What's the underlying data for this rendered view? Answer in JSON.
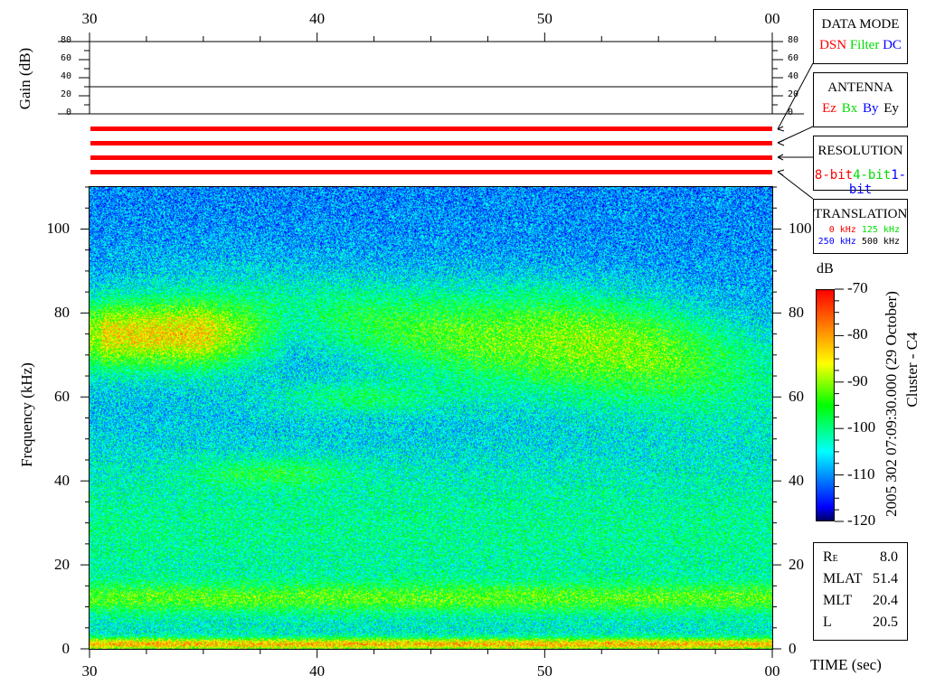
{
  "chart_data": {
    "type": "heatmap",
    "title": "",
    "xlabel": "TIME (sec)",
    "ylabel": "Frequency (kHz)",
    "x_tick_labels": [
      "30",
      "40",
      "50",
      "00"
    ],
    "xlim": [
      30,
      60
    ],
    "ylim": [
      0,
      110
    ],
    "y_tick_labels": [
      "0",
      "20",
      "40",
      "60",
      "80",
      "100"
    ],
    "colorbar": {
      "label": "dB",
      "range": [
        -120,
        -70
      ],
      "tick_labels": [
        "-70",
        "-80",
        "-90",
        "-100",
        "-110",
        "-120"
      ],
      "colormap": [
        "#000060",
        "#0000ff",
        "#00ffff",
        "#00ff80",
        "#00ff00",
        "#ffff00",
        "#ff8000",
        "#ff0000"
      ]
    },
    "gain_panel": {
      "ylabel": "Gain (dB)",
      "ylim": [
        0,
        80
      ],
      "tick_labels": [
        "0",
        "20",
        "40",
        "60",
        "80"
      ],
      "gain_value": 30
    },
    "status_bars": {
      "count": 4,
      "color": "#ff0000"
    }
  },
  "side_title": "2005 302 07:09:30.000 (29 October)",
  "spacecraft": "Cluster - C4",
  "legend_boxes": {
    "data_mode": {
      "title": "DATA MODE",
      "items": [
        {
          "label": "DSN",
          "color": "#ff0000"
        },
        {
          "label": "Filter",
          "color": "#00dd00"
        },
        {
          "label": "DC",
          "color": "#0000ff"
        }
      ]
    },
    "antenna": {
      "title": "ANTENNA",
      "items": [
        {
          "label": "Ez",
          "color": "#ff0000"
        },
        {
          "label": "Bx",
          "color": "#00dd00"
        },
        {
          "label": "By",
          "color": "#0000ff"
        },
        {
          "label": "Ey",
          "color": "#000000"
        }
      ]
    },
    "resolution": {
      "title": "RESOLUTION",
      "items": [
        {
          "label": "8-bit",
          "color": "#ff0000"
        },
        {
          "label": "4-bit",
          "color": "#00dd00"
        },
        {
          "label": "1-bit",
          "color": "#0000ff"
        }
      ]
    },
    "translation": {
      "title": "TRANSLATION",
      "items": [
        {
          "label": "0 kHz",
          "color": "#ff0000"
        },
        {
          "label": "125 kHz",
          "color": "#00dd00"
        },
        {
          "label": "250 kHz",
          "color": "#0000ff"
        },
        {
          "label": "500 kHz",
          "color": "#000000"
        }
      ]
    }
  },
  "orbit_info": [
    {
      "label": "R",
      "sub": "E",
      "value": "8.0"
    },
    {
      "label": "MLAT",
      "value": "51.4"
    },
    {
      "label": "MLT",
      "value": "20.4"
    },
    {
      "label": "L",
      "value": "20.5"
    }
  ]
}
